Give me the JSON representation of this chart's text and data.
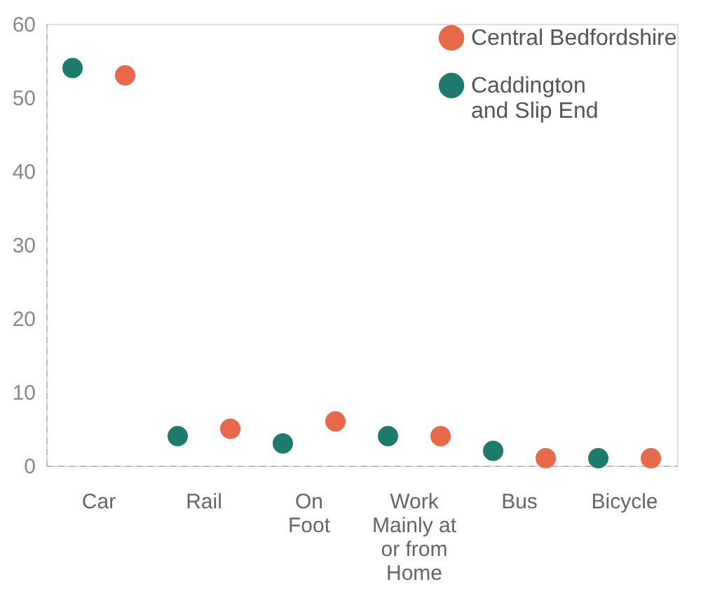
{
  "chart_data": {
    "type": "scatter",
    "categories": [
      "Car",
      "Rail",
      "On\nFoot",
      "Work\nMainly at\nor from\nHome",
      "Bus",
      "Bicycle"
    ],
    "series": [
      {
        "name": "Central Bedfordshire",
        "color": "#e8694a",
        "values": [
          53,
          5,
          6,
          4,
          1,
          1
        ]
      },
      {
        "name": "Caddington\nand Slip End",
        "color": "#1e7a6c",
        "values": [
          54,
          4,
          3,
          4,
          2,
          1
        ]
      }
    ],
    "ylim": [
      0,
      60
    ],
    "yticks": [
      0,
      10,
      20,
      30,
      40,
      50,
      60
    ],
    "grid": false,
    "legend": "top right",
    "marker": "circle"
  }
}
